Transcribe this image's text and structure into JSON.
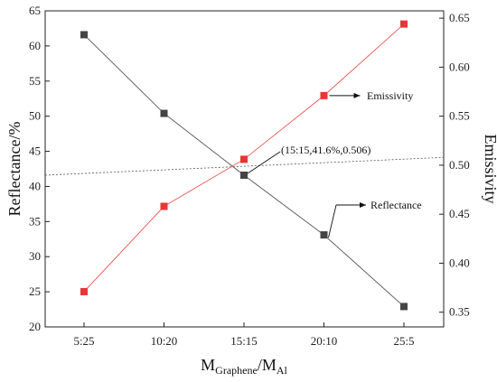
{
  "chart_data": {
    "type": "line",
    "categories": [
      "5:25",
      "10:20",
      "15:15",
      "20:10",
      "25:5"
    ],
    "series": [
      {
        "values": [
          61.6,
          50.4,
          41.6,
          33.1,
          22.9
        ],
        "axis": "left",
        "color": "#555555",
        "marker_color": "#444444"
      },
      {
        "values": [
          0.371,
          0.458,
          0.506,
          0.571,
          0.644
        ],
        "axis": "right",
        "color": "#ee5555",
        "marker_color": "#e83535"
      }
    ],
    "xlabel_main": "M",
    "xlabel_sub1": "Graphene",
    "xlabel_sep": "/M",
    "xlabel_sub2": "Al",
    "ylabel_left": "Reflectance/%",
    "ylabel_right": "Emissivity",
    "ylim_left": [
      20,
      65
    ],
    "yticks_left": [
      20,
      25,
      30,
      35,
      40,
      45,
      50,
      55,
      60,
      65
    ],
    "ylim_right": [
      0.335,
      0.6575
    ],
    "yticks_right": [
      "0.35",
      "0.40",
      "0.45",
      "0.50",
      "0.55",
      "0.60",
      "0.65"
    ],
    "reference_line": {
      "style": "dotted",
      "left_value": 41.6,
      "right_value": 0.508
    },
    "annotations": [
      {
        "text": "(15:15,41.6%,0.506)",
        "points_to": "intersection"
      },
      {
        "text": "Emissivity",
        "points_to": "series-2"
      },
      {
        "text": "Reflectance",
        "points_to": "series-1"
      }
    ],
    "grid": false,
    "legend": "none"
  }
}
